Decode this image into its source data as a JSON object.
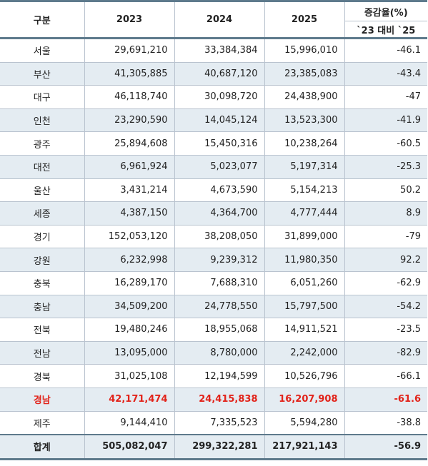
{
  "header": {
    "category": "구분",
    "y2023": "2023",
    "y2024": "2024",
    "y2025": "2025",
    "rate": "증감율(%)",
    "rate_sub": "`23 대비 `25"
  },
  "rows": [
    {
      "region": "서울",
      "y2023": "29,691,210",
      "y2024": "33,384,384",
      "y2025": "15,996,010",
      "rate": "-46.1"
    },
    {
      "region": "부산",
      "y2023": "41,305,885",
      "y2024": "40,687,120",
      "y2025": "23,385,083",
      "rate": "-43.4"
    },
    {
      "region": "대구",
      "y2023": "46,118,740",
      "y2024": "30,098,720",
      "y2025": "24,438,900",
      "rate": "-47"
    },
    {
      "region": "인천",
      "y2023": "23,290,590",
      "y2024": "14,045,124",
      "y2025": "13,523,300",
      "rate": "-41.9"
    },
    {
      "region": "광주",
      "y2023": "25,894,608",
      "y2024": "15,450,316",
      "y2025": "10,238,264",
      "rate": "-60.5"
    },
    {
      "region": "대전",
      "y2023": "6,961,924",
      "y2024": "5,023,077",
      "y2025": "5,197,314",
      "rate": "-25.3"
    },
    {
      "region": "울산",
      "y2023": "3,431,214",
      "y2024": "4,673,590",
      "y2025": "5,154,213",
      "rate": "50.2"
    },
    {
      "region": "세종",
      "y2023": "4,387,150",
      "y2024": "4,364,700",
      "y2025": "4,777,444",
      "rate": "8.9"
    },
    {
      "region": "경기",
      "y2023": "152,053,120",
      "y2024": "38,208,050",
      "y2025": "31,899,000",
      "rate": "-79"
    },
    {
      "region": "강원",
      "y2023": "6,232,998",
      "y2024": "9,239,312",
      "y2025": "11,980,350",
      "rate": "92.2"
    },
    {
      "region": "충북",
      "y2023": "16,289,170",
      "y2024": "7,688,310",
      "y2025": "6,051,260",
      "rate": "-62.9"
    },
    {
      "region": "충남",
      "y2023": "34,509,200",
      "y2024": "24,778,550",
      "y2025": "15,797,500",
      "rate": "-54.2"
    },
    {
      "region": "전북",
      "y2023": "19,480,246",
      "y2024": "18,955,068",
      "y2025": "14,911,521",
      "rate": "-23.5"
    },
    {
      "region": "전남",
      "y2023": "13,095,000",
      "y2024": "8,780,000",
      "y2025": "2,242,000",
      "rate": "-82.9"
    },
    {
      "region": "경북",
      "y2023": "31,025,108",
      "y2024": "12,194,599",
      "y2025": "10,526,796",
      "rate": "-66.1"
    },
    {
      "region": "경남",
      "y2023": "42,171,474",
      "y2024": "24,415,838",
      "y2025": "16,207,908",
      "rate": "-61.6"
    },
    {
      "region": "제주",
      "y2023": "9,144,410",
      "y2024": "7,335,523",
      "y2025": "5,594,280",
      "rate": "-38.8"
    }
  ],
  "total": {
    "region": "합계",
    "y2023": "505,082,047",
    "y2024": "299,322,281",
    "y2025": "217,921,143",
    "rate": "-56.9"
  },
  "colors": {
    "shade": "#e4ecf2",
    "rule": "#5e7a8c",
    "highlight": "#e2231a"
  }
}
